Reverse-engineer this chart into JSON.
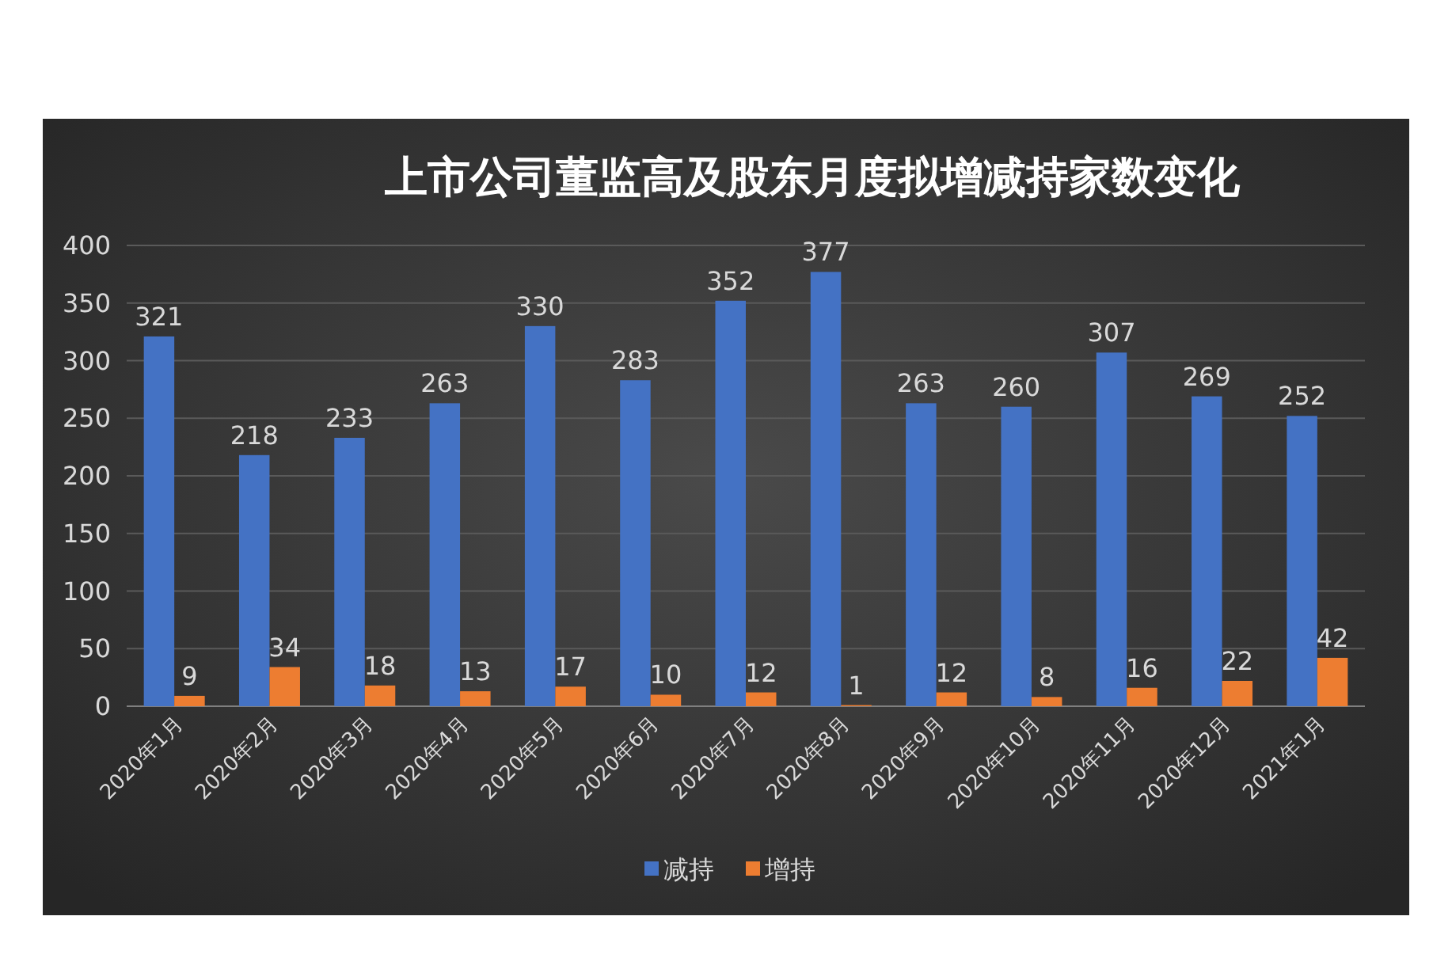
{
  "chart_data": {
    "type": "bar",
    "title": "上市公司董监高及股东月度拟增减持家数变化",
    "categories": [
      "2020年1月",
      "2020年2月",
      "2020年3月",
      "2020年4月",
      "2020年5月",
      "2020年6月",
      "2020年7月",
      "2020年8月",
      "2020年9月",
      "2020年10月",
      "2020年11月",
      "2020年12月",
      "2021年1月"
    ],
    "series": [
      {
        "name": "减持",
        "color": "#4472c4",
        "values": [
          321,
          218,
          233,
          263,
          330,
          283,
          352,
          377,
          263,
          260,
          307,
          269,
          252
        ]
      },
      {
        "name": "增持",
        "color": "#ed7d31",
        "values": [
          9,
          34,
          18,
          13,
          17,
          10,
          12,
          1,
          12,
          8,
          16,
          22,
          42
        ]
      }
    ],
    "ylim": [
      0,
      400
    ],
    "yticks": [
      0,
      50,
      100,
      150,
      200,
      250,
      300,
      350,
      400
    ],
    "grid": "y",
    "legend": "bottom",
    "data_labels": true
  }
}
